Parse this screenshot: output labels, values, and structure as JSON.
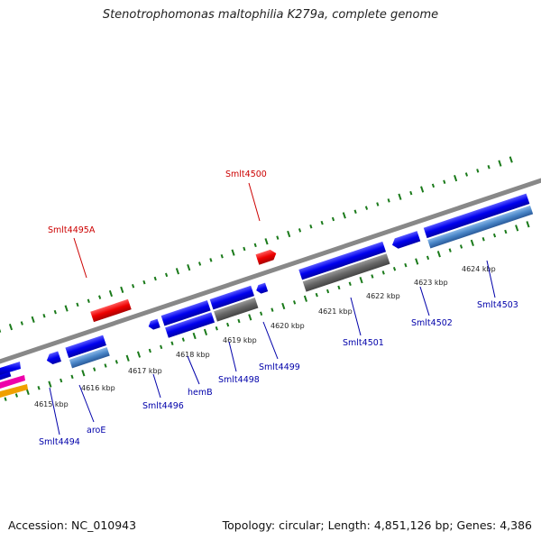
{
  "title": "Stenotrophomonas maltophilia K279a, complete genome",
  "accession": "Accession: NC_010943",
  "summary": "Topology: circular; Length: 4,851,126 bp; Genes: 4,386",
  "colors": {
    "forward_gene": "#0000ee",
    "reverse_gene": "#0000ee",
    "rna_gene": "#ee0000",
    "pseudo_gene": "#666666",
    "highlight_gene": "#4a86c8",
    "backbone": "#888888",
    "gc_ticks": "#1a7a1a",
    "label_red": "#cc0000",
    "label_blue": "#0000aa"
  },
  "scale_labels": [
    "4615 kbp",
    "4616 kbp",
    "4617 kbp",
    "4618 kbp",
    "4619 kbp",
    "4620 kbp",
    "4621 kbp",
    "4622 kbp",
    "4623 kbp",
    "4624 kbp"
  ],
  "gene_labels": {
    "top": [
      "Smlt4495A",
      "Smlt4500"
    ],
    "bottom": [
      "Smlt4494",
      "aroE",
      "Smlt4496",
      "hemB",
      "Smlt4498",
      "Smlt4499",
      "Smlt4501",
      "Smlt4502",
      "Smlt4503"
    ]
  }
}
